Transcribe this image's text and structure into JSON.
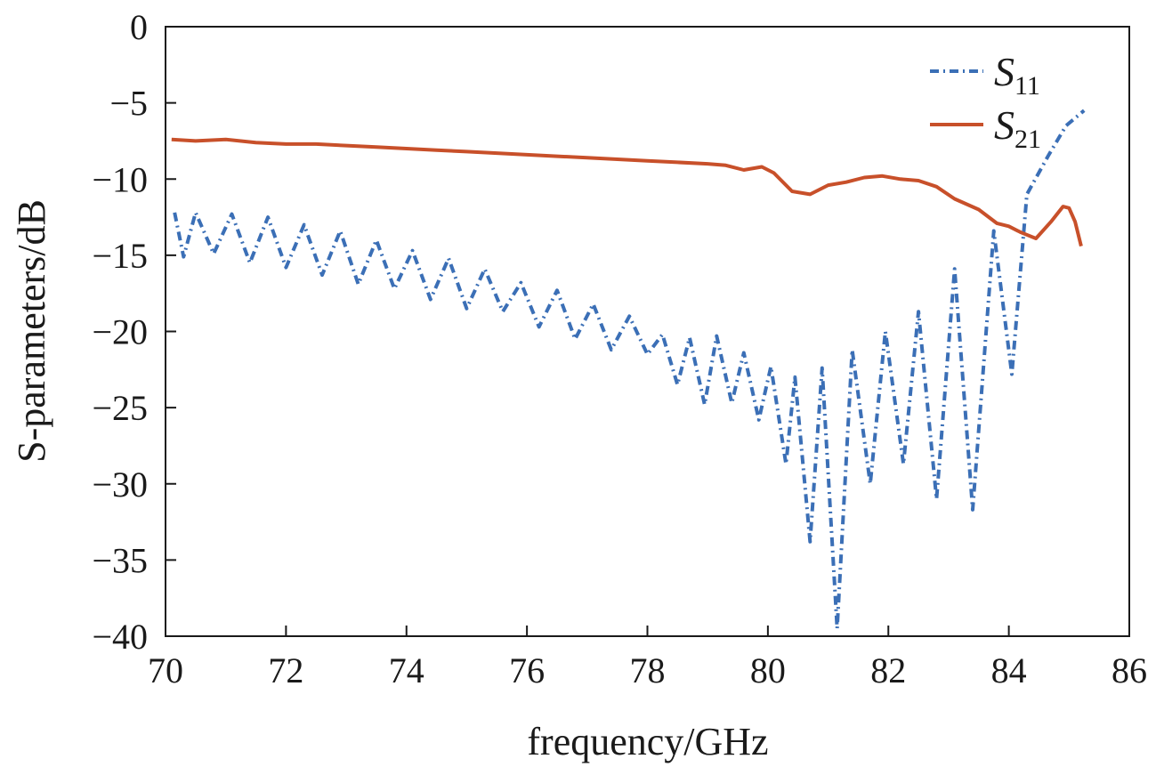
{
  "chart_data": {
    "type": "line",
    "xlabel": "frequency/GHz",
    "ylabel": "S-parameters/dB",
    "xlim": [
      70,
      86
    ],
    "ylim": [
      -40,
      0
    ],
    "x_ticks": [
      "70",
      "72",
      "74",
      "76",
      "78",
      "80",
      "82",
      "84",
      "86"
    ],
    "y_ticks": [
      "0",
      "−5",
      "−10",
      "−15",
      "−20",
      "−25",
      "−30",
      "−35",
      "−40"
    ],
    "legend_position": "top-right",
    "grid": false,
    "series": [
      {
        "name": "S11",
        "name_main": "S",
        "name_sub": "11",
        "color": "#3b6fb6",
        "style": "dash-dot",
        "x": [
          70.15,
          70.3,
          70.5,
          70.8,
          71.1,
          71.4,
          71.7,
          72.0,
          72.3,
          72.6,
          72.9,
          73.2,
          73.5,
          73.8,
          74.1,
          74.4,
          74.7,
          75.0,
          75.3,
          75.6,
          75.9,
          76.2,
          76.5,
          76.8,
          77.1,
          77.4,
          77.7,
          78.0,
          78.25,
          78.5,
          78.7,
          78.95,
          79.15,
          79.4,
          79.6,
          79.85,
          80.05,
          80.3,
          80.45,
          80.7,
          80.9,
          81.15,
          81.4,
          81.7,
          81.95,
          82.25,
          82.5,
          82.8,
          83.1,
          83.4,
          83.75,
          84.05,
          84.3,
          84.65,
          84.95,
          85.25
        ],
        "y": [
          -12.2,
          -15.1,
          -12.2,
          -14.9,
          -12.3,
          -15.5,
          -12.5,
          -15.8,
          -13.0,
          -16.3,
          -13.4,
          -16.9,
          -14.0,
          -17.2,
          -14.7,
          -17.9,
          -15.2,
          -18.5,
          -15.9,
          -18.7,
          -16.8,
          -19.7,
          -17.3,
          -20.5,
          -18.2,
          -21.2,
          -19.0,
          -21.5,
          -20.2,
          -23.5,
          -20.4,
          -24.8,
          -20.3,
          -24.7,
          -21.4,
          -25.8,
          -22.3,
          -28.7,
          -23.0,
          -33.8,
          -22.4,
          -39.5,
          -21.2,
          -30.0,
          -20.0,
          -28.7,
          -18.7,
          -31.0,
          -15.9,
          -31.7,
          -13.4,
          -22.8,
          -11.0,
          -8.5,
          -6.5,
          -5.5
        ]
      },
      {
        "name": "S21",
        "name_main": "S",
        "name_sub": "21",
        "color": "#c8502a",
        "style": "solid",
        "x": [
          70.1,
          70.5,
          71.0,
          71.5,
          72.0,
          72.5,
          73.0,
          73.5,
          74.0,
          74.5,
          75.0,
          75.5,
          76.0,
          76.5,
          77.0,
          77.5,
          78.0,
          78.5,
          79.0,
          79.3,
          79.6,
          79.9,
          80.1,
          80.4,
          80.7,
          81.0,
          81.3,
          81.6,
          81.9,
          82.2,
          82.5,
          82.8,
          83.1,
          83.5,
          83.8,
          84.0,
          84.2,
          84.45,
          84.7,
          84.9,
          85.0,
          85.1,
          85.2
        ],
        "y": [
          -7.4,
          -7.5,
          -7.4,
          -7.6,
          -7.7,
          -7.7,
          -7.8,
          -7.9,
          -8.0,
          -8.1,
          -8.2,
          -8.3,
          -8.4,
          -8.5,
          -8.6,
          -8.7,
          -8.8,
          -8.9,
          -9.0,
          -9.1,
          -9.4,
          -9.2,
          -9.6,
          -10.8,
          -11.0,
          -10.4,
          -10.2,
          -9.9,
          -9.8,
          -10.0,
          -10.1,
          -10.5,
          -11.3,
          -12.0,
          -12.9,
          -13.1,
          -13.5,
          -13.9,
          -12.8,
          -11.8,
          -11.9,
          -12.8,
          -14.4
        ]
      }
    ]
  }
}
